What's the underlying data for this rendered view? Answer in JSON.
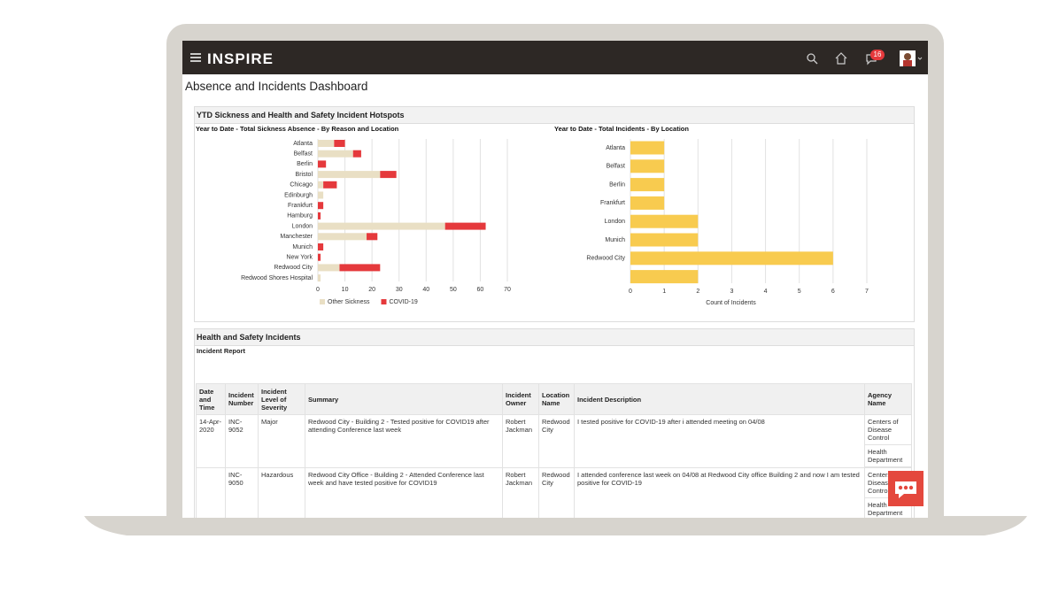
{
  "header": {
    "logo": "INSPIRE",
    "notification_count": 16
  },
  "page_title": "Absence and Incidents Dashboard",
  "hotspots_panel": {
    "title": "YTD Sickness and Health and Safety Incident Hotspots"
  },
  "chart_data": [
    {
      "type": "bar",
      "orientation": "horizontal",
      "stacked": true,
      "title": "Year to Date - Total Sickness Absence - By Reason and Location",
      "categories": [
        "Atlanta",
        "Belfast",
        "Berlin",
        "Bristol",
        "Chicago",
        "Edinburgh",
        "Frankfurt",
        "Hamburg",
        "London",
        "Manchester",
        "Munich",
        "New York",
        "Redwood City",
        "Redwood Shores Hospital"
      ],
      "series": [
        {
          "name": "Other Sickness",
          "color": "#e9dfc4",
          "values": [
            6,
            13,
            0,
            23,
            2,
            2,
            0,
            0,
            47,
            18,
            0,
            0,
            8,
            1
          ]
        },
        {
          "name": "COVID-19",
          "color": "#e5393c",
          "values": [
            4,
            3,
            3,
            6,
            5,
            0,
            2,
            1,
            15,
            4,
            2,
            1,
            15,
            0
          ]
        }
      ],
      "xlim": [
        0,
        70
      ],
      "xticks": [
        0,
        10,
        20,
        30,
        40,
        50,
        60,
        70
      ],
      "grid": true,
      "legend": "bottom"
    },
    {
      "type": "bar",
      "orientation": "horizontal",
      "title": "Year to Date - Total Incidents - By Location",
      "categories": [
        "Atlanta",
        "Belfast",
        "Berlin",
        "Frankfurt",
        "London",
        "Munich",
        "Redwood City",
        null
      ],
      "values": [
        1,
        1,
        1,
        1,
        2,
        2,
        6,
        2
      ],
      "color": "#f8cb4f",
      "xlim": [
        0,
        7
      ],
      "xticks": [
        0,
        1,
        2,
        3,
        4,
        5,
        6,
        7
      ],
      "x_label": "Count of Incidents",
      "grid": true
    }
  ],
  "incidents_panel": {
    "title": "Health and Safety Incidents",
    "report": {
      "title": "Incident Report",
      "columns": [
        "Date and Time",
        "Incident Number",
        "Incident Level of Severity",
        "Summary",
        "Incident Owner",
        "Location Name",
        "Incident Description",
        "Agency Name"
      ],
      "rows": [
        [
          "14-Apr-2020",
          "INC-9052",
          "Major",
          "Redwood City - Building 2 - Tested positive for COVID19 after attending Conference last week",
          "Robert Jackman",
          "Redwood City",
          "I tested positive for COVID-19 after i attended meeting on 04/08",
          [
            "Centers of Disease Control",
            "Health Department"
          ]
        ],
        [
          null,
          "INC-9050",
          "Hazardous",
          "Redwood City Office - Building 2 - Attended Conference last week and have tested positive for COVID19",
          "Robert Jackman",
          "Redwood City",
          "I attended conference last week on 04/08 at Redwood City office Building 2 and now I am tested positive for COVID-19",
          [
            "Centers of Disease Control",
            "Health Department"
          ]
        ]
      ]
    }
  }
}
